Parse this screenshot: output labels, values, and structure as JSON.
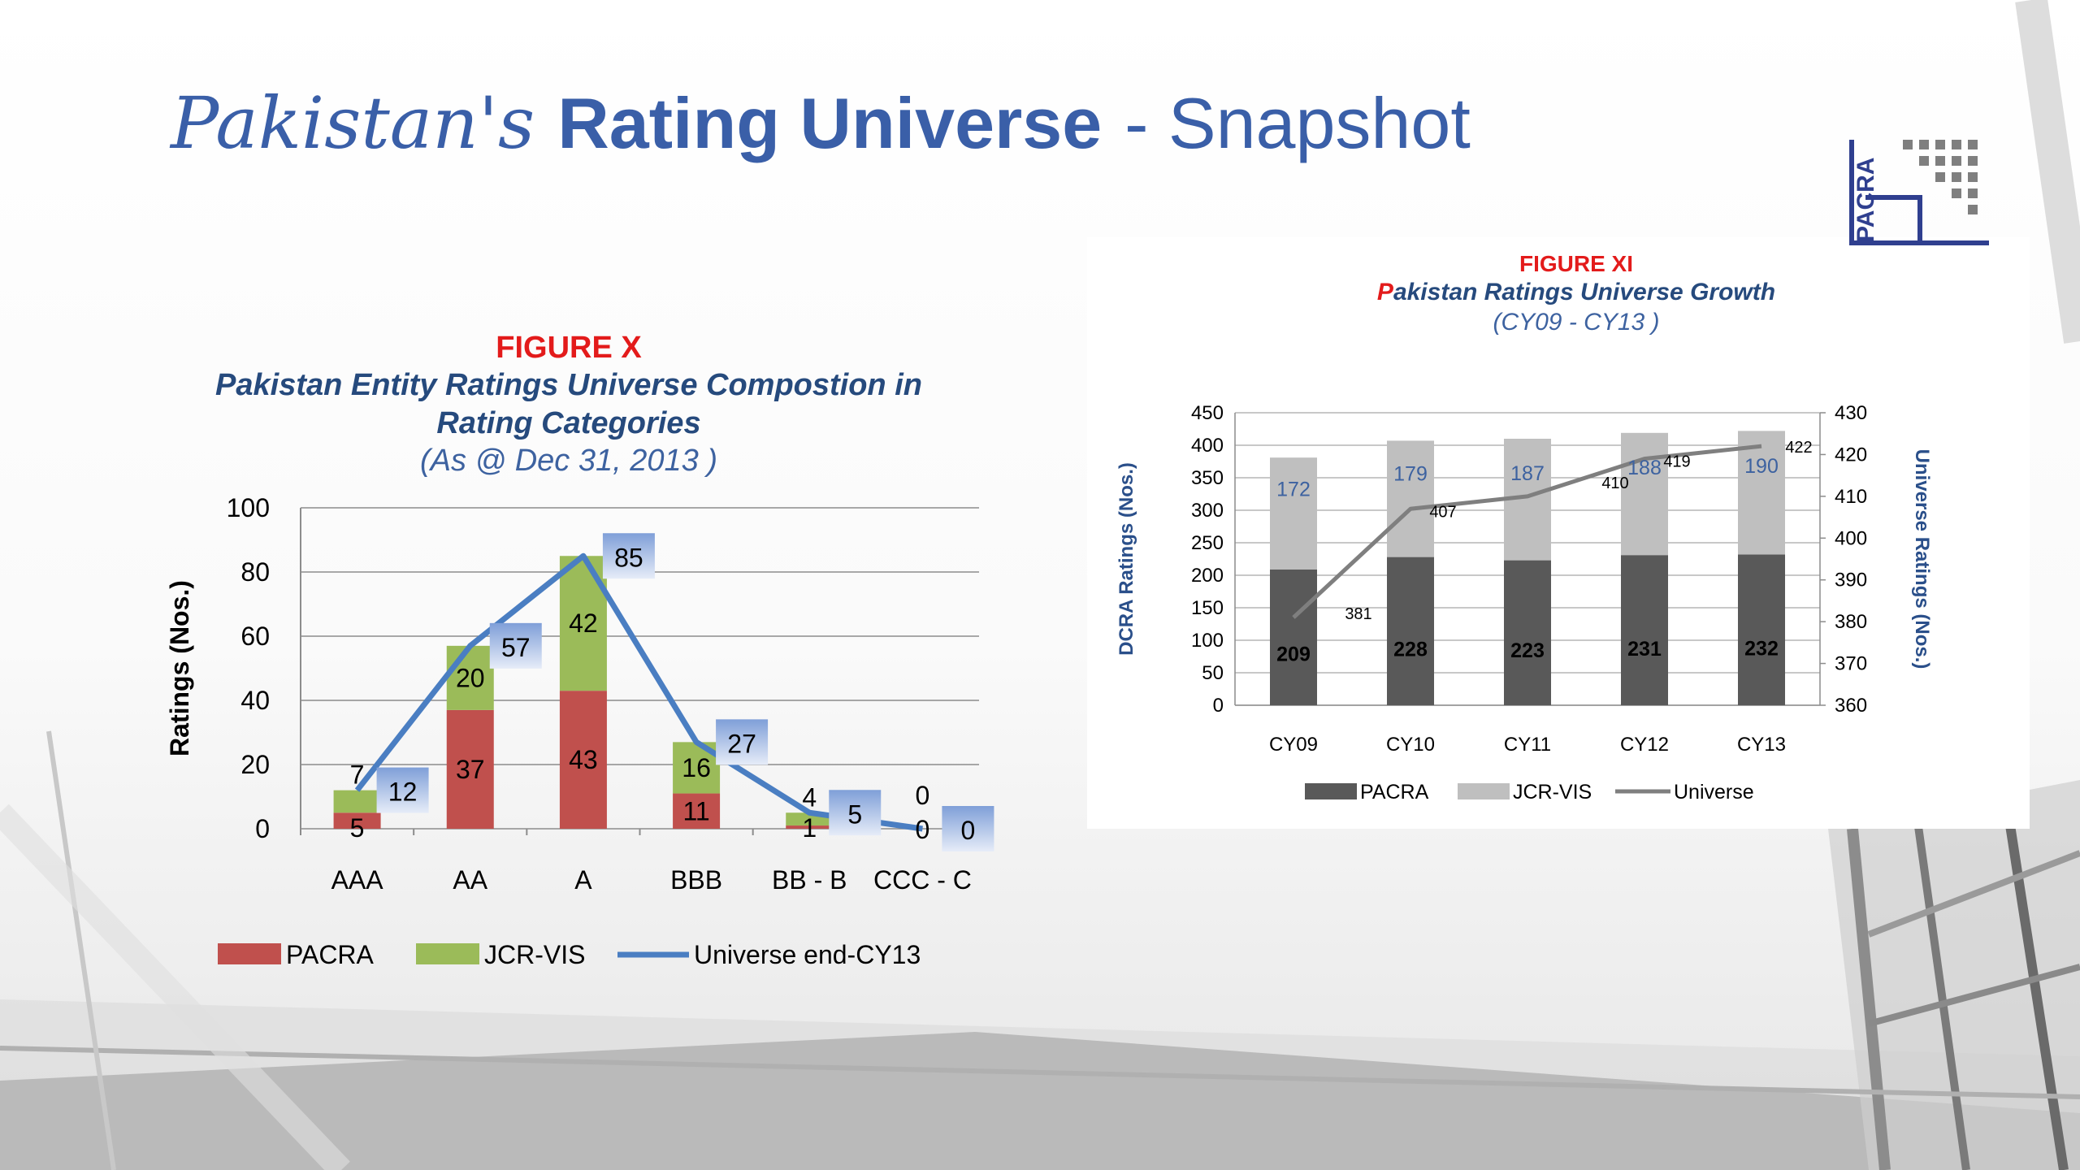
{
  "slide": {
    "title_part1": "Pakistan's",
    "title_part2": "Rating Universe",
    "title_part3": "- Snapshot",
    "logo_text": "PACRA"
  },
  "colors": {
    "title_blue": "#3a5fa8",
    "pacra_red": "#c0504d",
    "jcr_green": "#9bbb59",
    "universe_blue": "#4a7ec2",
    "pacra_dark": "#595959",
    "jcr_light": "#bfbfbf",
    "universe_grey": "#7f7f7f",
    "figure_red": "#e31b1b"
  },
  "figure_x": {
    "tag": "FIGURE X",
    "name_line1": "Pakistan Entity Ratings Universe Compostion in",
    "name_line2": "Rating Categories",
    "subtitle": "(As @ Dec 31, 2013 )"
  },
  "figure_xi": {
    "tag": "FIGURE XI",
    "name_first_letter": "P",
    "name_rest": "akistan Ratings Universe Growth",
    "subtitle": "(CY09 - CY13 )"
  },
  "chart_data": [
    {
      "type": "bar",
      "stacked": true,
      "categories": [
        "AAA",
        "AA",
        "A",
        "BBB",
        "BB - B",
        "CCC - C"
      ],
      "series": [
        {
          "name": "PACRA",
          "kind": "bar",
          "color": "#c0504d",
          "values": [
            5,
            37,
            43,
            11,
            1,
            0
          ]
        },
        {
          "name": "JCR-VIS",
          "kind": "bar",
          "color": "#9bbb59",
          "values": [
            7,
            20,
            42,
            16,
            4,
            0
          ]
        },
        {
          "name": "Universe end-CY13",
          "kind": "line",
          "color": "#4a7ec2",
          "values": [
            12,
            57,
            85,
            27,
            5,
            0
          ]
        }
      ],
      "pacra_labels": [
        "5",
        "37",
        "43",
        "11",
        "1",
        "0"
      ],
      "jcr_labels": [
        "7",
        "20",
        "42",
        "16",
        "4",
        "0"
      ],
      "universe_labels": [
        "12",
        "57",
        "85",
        "27",
        "5",
        "0"
      ],
      "ylabel": "Ratings (Nos.)",
      "ylim": [
        0,
        100
      ],
      "yticks": [
        "0",
        "20",
        "40",
        "60",
        "80",
        "100"
      ],
      "grid": true,
      "legend_position": "bottom"
    },
    {
      "type": "bar",
      "stacked": true,
      "categories": [
        "CY09",
        "CY10",
        "CY11",
        "CY12",
        "CY13"
      ],
      "series": [
        {
          "name": "PACRA",
          "kind": "bar",
          "color": "#595959",
          "values": [
            209,
            228,
            223,
            231,
            232
          ]
        },
        {
          "name": "JCR-VIS",
          "kind": "bar",
          "color": "#bfbfbf",
          "values": [
            172,
            179,
            187,
            188,
            190
          ]
        },
        {
          "name": "Universe",
          "kind": "line",
          "axis": "secondary",
          "color": "#7f7f7f",
          "values": [
            381,
            407,
            410,
            419,
            422
          ]
        }
      ],
      "pacra_labels": [
        "209",
        "228",
        "223",
        "231",
        "232"
      ],
      "jcr_labels": [
        "172",
        "179",
        "187",
        "188",
        "190"
      ],
      "universe_labels": [
        "381",
        "407",
        "410",
        "419",
        "422"
      ],
      "ylabel": "DCRA Ratings (Nos.)",
      "ylim": [
        0,
        450
      ],
      "yticks": [
        "0",
        "50",
        "100",
        "150",
        "200",
        "250",
        "300",
        "350",
        "400",
        "450"
      ],
      "y2label": "Universe Ratings (Nos.)",
      "y2lim": [
        360,
        430
      ],
      "y2ticks": [
        "360",
        "370",
        "380",
        "390",
        "400",
        "410",
        "420",
        "430"
      ],
      "grid": true,
      "legend_position": "bottom"
    }
  ]
}
